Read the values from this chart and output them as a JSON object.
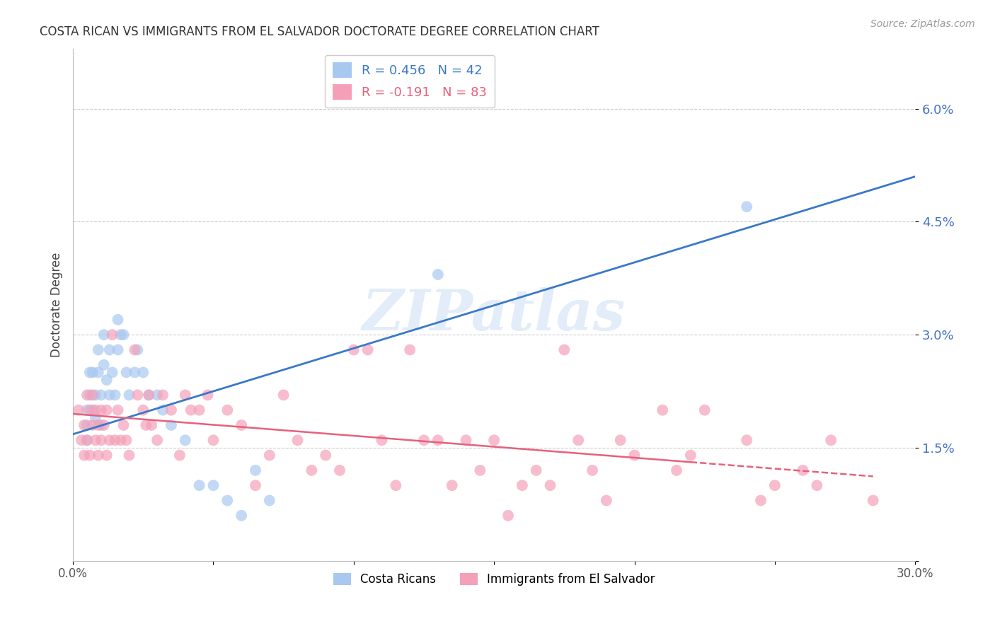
{
  "title": "COSTA RICAN VS IMMIGRANTS FROM EL SALVADOR DOCTORATE DEGREE CORRELATION CHART",
  "source_text": "Source: ZipAtlas.com",
  "ylabel": "Doctorate Degree",
  "xlim": [
    0.0,
    0.3
  ],
  "ylim": [
    0.0,
    0.068
  ],
  "yticks": [
    0.0,
    0.015,
    0.03,
    0.045,
    0.06
  ],
  "ytick_labels": [
    "",
    "1.5%",
    "3.0%",
    "4.5%",
    "6.0%"
  ],
  "xticks": [
    0.0,
    0.05,
    0.1,
    0.15,
    0.2,
    0.25,
    0.3
  ],
  "xtick_labels": [
    "0.0%",
    "",
    "",
    "",
    "",
    "",
    "30.0%"
  ],
  "legend_labels": [
    "Costa Ricans",
    "Immigrants from El Salvador"
  ],
  "blue_color": "#a8c8f0",
  "pink_color": "#f4a0b8",
  "blue_line_color": "#3a78c9",
  "pink_line_color": "#e8607a",
  "blue_scatter_x": [
    0.005,
    0.005,
    0.005,
    0.006,
    0.006,
    0.007,
    0.007,
    0.008,
    0.008,
    0.009,
    0.009,
    0.01,
    0.01,
    0.011,
    0.011,
    0.012,
    0.013,
    0.013,
    0.014,
    0.015,
    0.016,
    0.016,
    0.017,
    0.018,
    0.019,
    0.02,
    0.022,
    0.023,
    0.025,
    0.027,
    0.03,
    0.032,
    0.035,
    0.04,
    0.045,
    0.05,
    0.055,
    0.06,
    0.065,
    0.07,
    0.13,
    0.24
  ],
  "blue_scatter_y": [
    0.02,
    0.018,
    0.016,
    0.022,
    0.025,
    0.02,
    0.025,
    0.019,
    0.022,
    0.025,
    0.028,
    0.022,
    0.018,
    0.03,
    0.026,
    0.024,
    0.028,
    0.022,
    0.025,
    0.022,
    0.028,
    0.032,
    0.03,
    0.03,
    0.025,
    0.022,
    0.025,
    0.028,
    0.025,
    0.022,
    0.022,
    0.02,
    0.018,
    0.016,
    0.01,
    0.01,
    0.008,
    0.006,
    0.012,
    0.008,
    0.038,
    0.047
  ],
  "pink_scatter_x": [
    0.002,
    0.003,
    0.004,
    0.004,
    0.005,
    0.005,
    0.006,
    0.006,
    0.007,
    0.007,
    0.008,
    0.008,
    0.009,
    0.009,
    0.01,
    0.01,
    0.011,
    0.012,
    0.012,
    0.013,
    0.014,
    0.015,
    0.016,
    0.017,
    0.018,
    0.019,
    0.02,
    0.022,
    0.023,
    0.025,
    0.026,
    0.027,
    0.028,
    0.03,
    0.032,
    0.035,
    0.038,
    0.04,
    0.042,
    0.045,
    0.048,
    0.05,
    0.055,
    0.06,
    0.065,
    0.07,
    0.075,
    0.08,
    0.085,
    0.09,
    0.095,
    0.1,
    0.105,
    0.11,
    0.115,
    0.12,
    0.125,
    0.13,
    0.135,
    0.14,
    0.145,
    0.15,
    0.155,
    0.16,
    0.165,
    0.17,
    0.175,
    0.18,
    0.185,
    0.19,
    0.195,
    0.2,
    0.21,
    0.215,
    0.22,
    0.225,
    0.24,
    0.245,
    0.25,
    0.26,
    0.265,
    0.27,
    0.285
  ],
  "pink_scatter_y": [
    0.02,
    0.016,
    0.018,
    0.014,
    0.022,
    0.016,
    0.02,
    0.014,
    0.018,
    0.022,
    0.016,
    0.02,
    0.018,
    0.014,
    0.02,
    0.016,
    0.018,
    0.014,
    0.02,
    0.016,
    0.03,
    0.016,
    0.02,
    0.016,
    0.018,
    0.016,
    0.014,
    0.028,
    0.022,
    0.02,
    0.018,
    0.022,
    0.018,
    0.016,
    0.022,
    0.02,
    0.014,
    0.022,
    0.02,
    0.02,
    0.022,
    0.016,
    0.02,
    0.018,
    0.01,
    0.014,
    0.022,
    0.016,
    0.012,
    0.014,
    0.012,
    0.028,
    0.028,
    0.016,
    0.01,
    0.028,
    0.016,
    0.016,
    0.01,
    0.016,
    0.012,
    0.016,
    0.006,
    0.01,
    0.012,
    0.01,
    0.028,
    0.016,
    0.012,
    0.008,
    0.016,
    0.014,
    0.02,
    0.012,
    0.014,
    0.02,
    0.016,
    0.008,
    0.01,
    0.012,
    0.01,
    0.016,
    0.008
  ],
  "blue_line_x": [
    0.0,
    0.3
  ],
  "blue_line_y": [
    0.0168,
    0.051
  ],
  "pink_line_x": [
    0.0,
    0.285
  ],
  "pink_line_y": [
    0.0195,
    0.0112
  ],
  "pink_line_solid_end": 0.22,
  "watermark": "ZIPatlas",
  "background_color": "#ffffff",
  "grid_color": "#cccccc"
}
